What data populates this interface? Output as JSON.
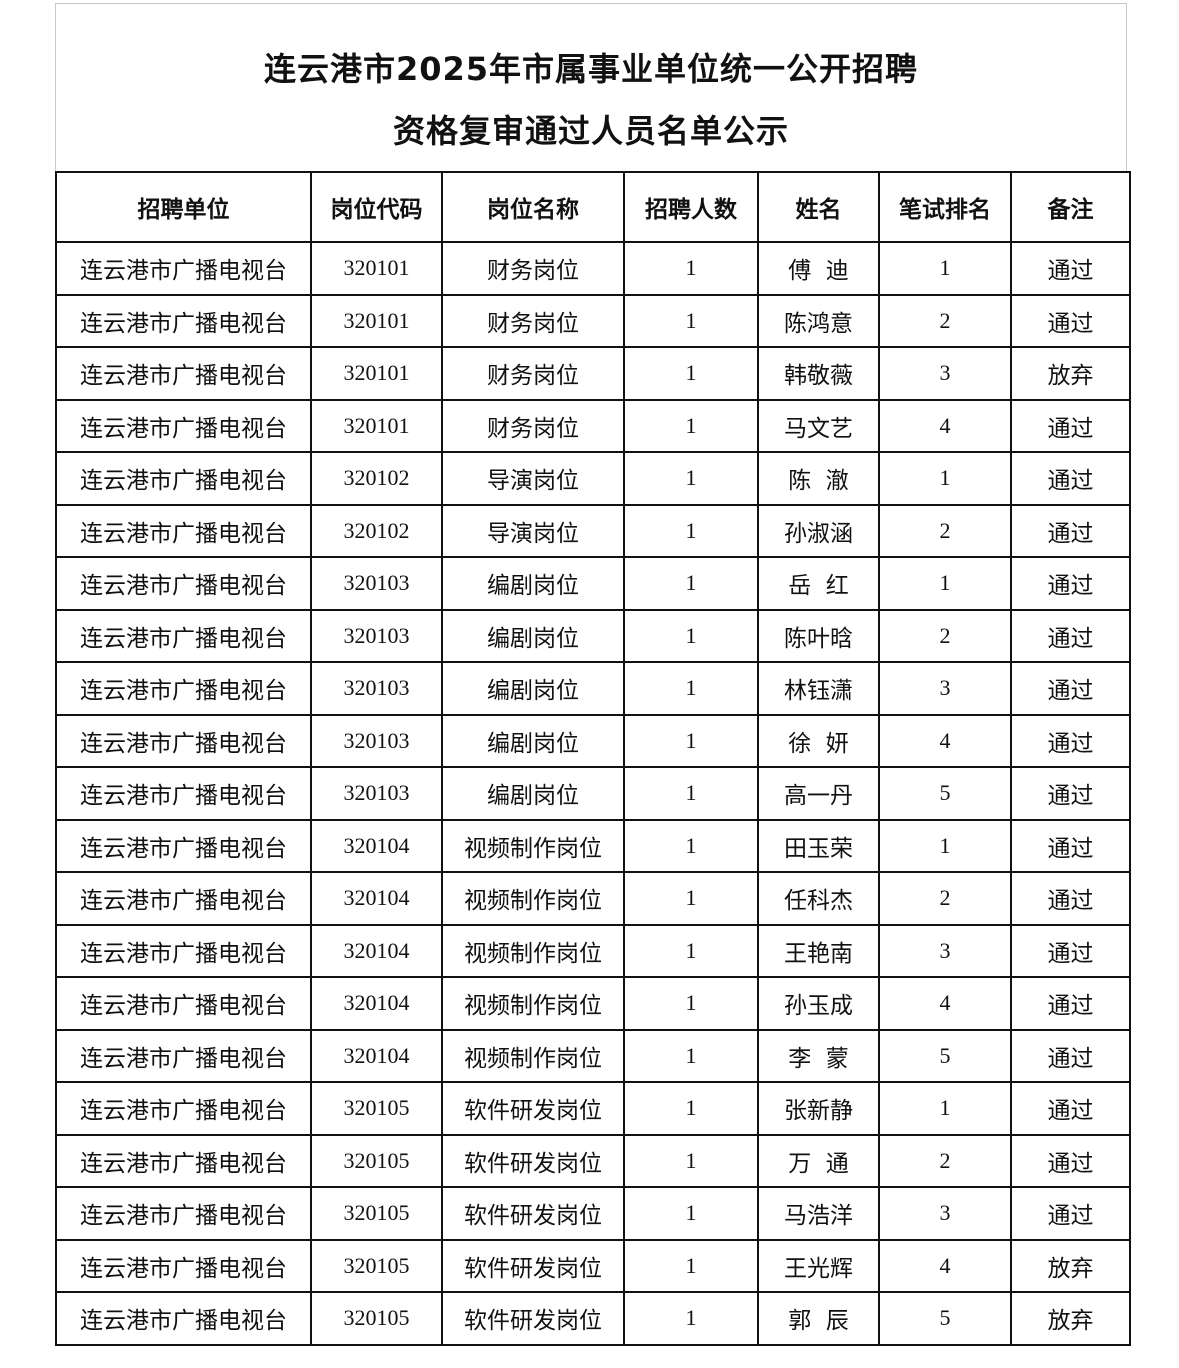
{
  "title": {
    "line1": "连云港市2025年市属事业单位统一公开招聘",
    "line2": "资格复审通过人员名单公示"
  },
  "table": {
    "headers": [
      "招聘单位",
      "岗位代码",
      "岗位名称",
      "招聘人数",
      "姓名",
      "笔试排名",
      "备注"
    ],
    "rows": [
      [
        "连云港市广播电视台",
        "320101",
        "财务岗位",
        "1",
        "傅  迪",
        "1",
        "通过"
      ],
      [
        "连云港市广播电视台",
        "320101",
        "财务岗位",
        "1",
        "陈鸿意",
        "2",
        "通过"
      ],
      [
        "连云港市广播电视台",
        "320101",
        "财务岗位",
        "1",
        "韩敬薇",
        "3",
        "放弃"
      ],
      [
        "连云港市广播电视台",
        "320101",
        "财务岗位",
        "1",
        "马文艺",
        "4",
        "通过"
      ],
      [
        "连云港市广播电视台",
        "320102",
        "导演岗位",
        "1",
        "陈  澈",
        "1",
        "通过"
      ],
      [
        "连云港市广播电视台",
        "320102",
        "导演岗位",
        "1",
        "孙淑涵",
        "2",
        "通过"
      ],
      [
        "连云港市广播电视台",
        "320103",
        "编剧岗位",
        "1",
        "岳  红",
        "1",
        "通过"
      ],
      [
        "连云港市广播电视台",
        "320103",
        "编剧岗位",
        "1",
        "陈叶晗",
        "2",
        "通过"
      ],
      [
        "连云港市广播电视台",
        "320103",
        "编剧岗位",
        "1",
        "林钰潇",
        "3",
        "通过"
      ],
      [
        "连云港市广播电视台",
        "320103",
        "编剧岗位",
        "1",
        "徐  妍",
        "4",
        "通过"
      ],
      [
        "连云港市广播电视台",
        "320103",
        "编剧岗位",
        "1",
        "高一丹",
        "5",
        "通过"
      ],
      [
        "连云港市广播电视台",
        "320104",
        "视频制作岗位",
        "1",
        "田玉荣",
        "1",
        "通过"
      ],
      [
        "连云港市广播电视台",
        "320104",
        "视频制作岗位",
        "1",
        "任科杰",
        "2",
        "通过"
      ],
      [
        "连云港市广播电视台",
        "320104",
        "视频制作岗位",
        "1",
        "王艳南",
        "3",
        "通过"
      ],
      [
        "连云港市广播电视台",
        "320104",
        "视频制作岗位",
        "1",
        "孙玉成",
        "4",
        "通过"
      ],
      [
        "连云港市广播电视台",
        "320104",
        "视频制作岗位",
        "1",
        "李  蒙",
        "5",
        "通过"
      ],
      [
        "连云港市广播电视台",
        "320105",
        "软件研发岗位",
        "1",
        "张新静",
        "1",
        "通过"
      ],
      [
        "连云港市广播电视台",
        "320105",
        "软件研发岗位",
        "1",
        "万  通",
        "2",
        "通过"
      ],
      [
        "连云港市广播电视台",
        "320105",
        "软件研发岗位",
        "1",
        "马浩洋",
        "3",
        "通过"
      ],
      [
        "连云港市广播电视台",
        "320105",
        "软件研发岗位",
        "1",
        "王光辉",
        "4",
        "放弃"
      ],
      [
        "连云港市广播电视台",
        "320105",
        "软件研发岗位",
        "1",
        "郭  辰",
        "5",
        "放弃"
      ]
    ]
  }
}
